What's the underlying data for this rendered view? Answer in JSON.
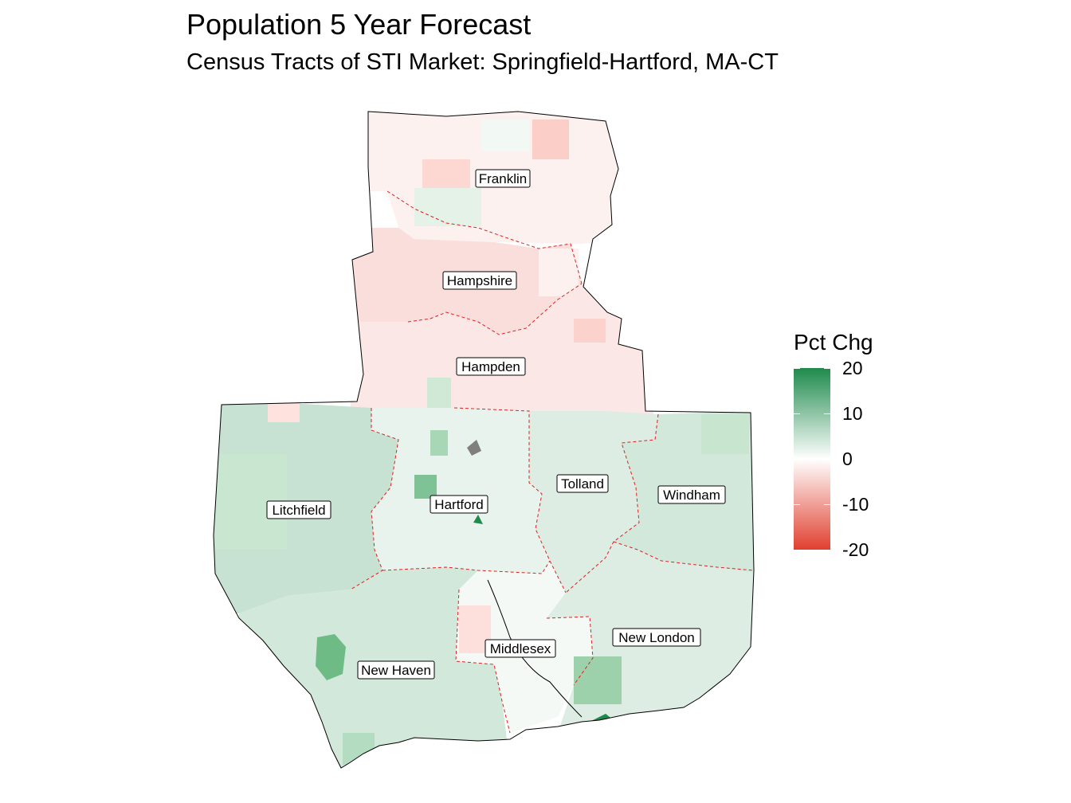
{
  "title": "Population 5 Year Forecast",
  "subtitle": "Census Tracts of STI Market: Springfield-Hartford, MA-CT",
  "counties": [
    {
      "id": "franklin",
      "label": "Franklin",
      "pct_chg": -1.5
    },
    {
      "id": "hampshire",
      "label": "Hampshire",
      "pct_chg": -3.5
    },
    {
      "id": "hampden",
      "label": "Hampden",
      "pct_chg": -2.5
    },
    {
      "id": "litchfield",
      "label": "Litchfield",
      "pct_chg": 5
    },
    {
      "id": "hartford",
      "label": "Hartford",
      "pct_chg": 2
    },
    {
      "id": "tolland",
      "label": "Tolland",
      "pct_chg": 3
    },
    {
      "id": "windham",
      "label": "Windham",
      "pct_chg": 4
    },
    {
      "id": "new-haven",
      "label": "New Haven",
      "pct_chg": 4
    },
    {
      "id": "middlesex",
      "label": "Middlesex",
      "pct_chg": 1
    },
    {
      "id": "new-london",
      "label": "New London",
      "pct_chg": 3
    }
  ],
  "legend": {
    "title": "Pct Chg",
    "min": -20,
    "max": 20,
    "ticks": [
      {
        "value": 20,
        "label": "20"
      },
      {
        "value": 10,
        "label": "10"
      },
      {
        "value": 0,
        "label": "0"
      },
      {
        "value": -10,
        "label": "-10"
      },
      {
        "value": -20,
        "label": "-20"
      }
    ],
    "colors": {
      "low": "#e0402f",
      "mid": "#ffffff",
      "high": "#1e8a4c"
    }
  },
  "colors": {
    "county_border": "#e02020",
    "outline": "#000000",
    "missing": "#7f7f7f"
  }
}
